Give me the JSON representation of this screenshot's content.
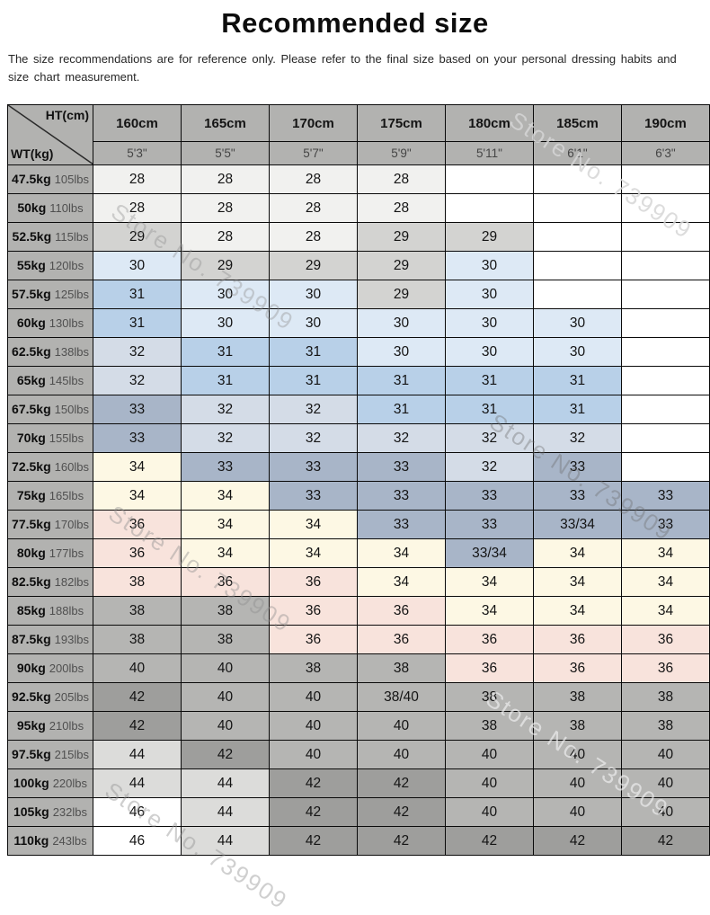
{
  "chart_data": {
    "type": "table",
    "title": "Recommended size",
    "note": "The size recommendations are for reference only. Please refer to the final size based on your personal dressing habits and size chart measurement.",
    "corner": {
      "top": "HT(cm)",
      "bottom": "WT(kg)"
    },
    "columns_cm": [
      "160cm",
      "165cm",
      "170cm",
      "175cm",
      "180cm",
      "185cm",
      "190cm"
    ],
    "columns_ftin": [
      "5'3\"",
      "5'5\"",
      "5'7\"",
      "5'9\"",
      "5'11\"",
      "6'1\"",
      "6'3\""
    ],
    "rows": [
      {
        "kg": "47.5kg",
        "lbs": "105lbs",
        "sizes": [
          "28",
          "28",
          "28",
          "28",
          "",
          "",
          ""
        ],
        "cell_colors": [
          "ow",
          "ow",
          "ow",
          "ow",
          "w",
          "w",
          "w"
        ]
      },
      {
        "kg": "50kg",
        "lbs": "110lbs",
        "sizes": [
          "28",
          "28",
          "28",
          "28",
          "",
          "",
          ""
        ],
        "cell_colors": [
          "ow",
          "ow",
          "ow",
          "ow",
          "w",
          "w",
          "w"
        ]
      },
      {
        "kg": "52.5kg",
        "lbs": "115lbs",
        "sizes": [
          "29",
          "28",
          "28",
          "29",
          "29",
          "",
          ""
        ],
        "cell_colors": [
          "sv",
          "ow",
          "ow",
          "sv",
          "sv",
          "w",
          "w"
        ]
      },
      {
        "kg": "55kg",
        "lbs": "120lbs",
        "sizes": [
          "30",
          "29",
          "29",
          "29",
          "30",
          "",
          ""
        ],
        "cell_colors": [
          "lb",
          "sv",
          "sv",
          "sv",
          "lb",
          "w",
          "w"
        ]
      },
      {
        "kg": "57.5kg",
        "lbs": "125lbs",
        "sizes": [
          "31",
          "30",
          "30",
          "29",
          "30",
          "",
          ""
        ],
        "cell_colors": [
          "mb",
          "lb",
          "lb",
          "sv",
          "lb",
          "w",
          "w"
        ]
      },
      {
        "kg": "60kg",
        "lbs": "130lbs",
        "sizes": [
          "31",
          "30",
          "30",
          "30",
          "30",
          "30",
          ""
        ],
        "cell_colors": [
          "mb",
          "lb",
          "lb",
          "lb",
          "lb",
          "lb",
          "w"
        ]
      },
      {
        "kg": "62.5kg",
        "lbs": "138lbs",
        "sizes": [
          "32",
          "31",
          "31",
          "30",
          "30",
          "30",
          ""
        ],
        "cell_colors": [
          "bg",
          "mb",
          "mb",
          "lb",
          "lb",
          "lb",
          "w"
        ]
      },
      {
        "kg": "65kg",
        "lbs": "145lbs",
        "sizes": [
          "32",
          "31",
          "31",
          "31",
          "31",
          "31",
          ""
        ],
        "cell_colors": [
          "bg",
          "mb",
          "mb",
          "mb",
          "mb",
          "mb",
          "w"
        ]
      },
      {
        "kg": "67.5kg",
        "lbs": "150lbs",
        "sizes": [
          "33",
          "32",
          "32",
          "31",
          "31",
          "31",
          ""
        ],
        "cell_colors": [
          "sl",
          "bg",
          "bg",
          "mb",
          "mb",
          "mb",
          "w"
        ]
      },
      {
        "kg": "70kg",
        "lbs": "155lbs",
        "sizes": [
          "33",
          "32",
          "32",
          "32",
          "32",
          "32",
          ""
        ],
        "cell_colors": [
          "sl",
          "bg",
          "bg",
          "bg",
          "bg",
          "bg",
          "w"
        ]
      },
      {
        "kg": "72.5kg",
        "lbs": "160lbs",
        "sizes": [
          "34",
          "33",
          "33",
          "33",
          "32",
          "33",
          ""
        ],
        "cell_colors": [
          "cr",
          "sl",
          "sl",
          "sl",
          "bg",
          "sl",
          "w"
        ]
      },
      {
        "kg": "75kg",
        "lbs": "165lbs",
        "sizes": [
          "34",
          "34",
          "33",
          "33",
          "33",
          "33",
          "33"
        ],
        "cell_colors": [
          "cr",
          "cr",
          "sl",
          "sl",
          "sl",
          "sl",
          "sl"
        ]
      },
      {
        "kg": "77.5kg",
        "lbs": "170lbs",
        "sizes": [
          "36",
          "34",
          "34",
          "33",
          "33",
          "33/34",
          "33"
        ],
        "cell_colors": [
          "pk",
          "cr",
          "cr",
          "sl",
          "sl",
          "sl",
          "sl"
        ]
      },
      {
        "kg": "80kg",
        "lbs": "177lbs",
        "sizes": [
          "36",
          "34",
          "34",
          "34",
          "33/34",
          "34",
          "34"
        ],
        "cell_colors": [
          "pk",
          "cr",
          "cr",
          "cr",
          "sl",
          "cr",
          "cr"
        ]
      },
      {
        "kg": "82.5kg",
        "lbs": "182lbs",
        "sizes": [
          "38",
          "36",
          "36",
          "34",
          "34",
          "34",
          "34"
        ],
        "cell_colors": [
          "pk",
          "pk",
          "pk",
          "cr",
          "cr",
          "cr",
          "cr"
        ]
      },
      {
        "kg": "85kg",
        "lbs": "188lbs",
        "sizes": [
          "38",
          "38",
          "36",
          "36",
          "34",
          "34",
          "34"
        ],
        "cell_colors": [
          "gr",
          "gr",
          "pk",
          "pk",
          "cr",
          "cr",
          "cr"
        ]
      },
      {
        "kg": "87.5kg",
        "lbs": "193lbs",
        "sizes": [
          "38",
          "38",
          "36",
          "36",
          "36",
          "36",
          "36"
        ],
        "cell_colors": [
          "gr",
          "gr",
          "pk",
          "pk",
          "pk",
          "pk",
          "pk"
        ]
      },
      {
        "kg": "90kg",
        "lbs": "200lbs",
        "sizes": [
          "40",
          "40",
          "38",
          "38",
          "36",
          "36",
          "36"
        ],
        "cell_colors": [
          "gr",
          "gr",
          "gr",
          "gr",
          "pk",
          "pk",
          "pk"
        ]
      },
      {
        "kg": "92.5kg",
        "lbs": "205lbs",
        "sizes": [
          "42",
          "40",
          "40",
          "38/40",
          "38",
          "38",
          "38"
        ],
        "cell_colors": [
          "dg",
          "gr",
          "gr",
          "gr",
          "gr",
          "gr",
          "gr"
        ]
      },
      {
        "kg": "95kg",
        "lbs": "210lbs",
        "sizes": [
          "42",
          "40",
          "40",
          "40",
          "38",
          "38",
          "38"
        ],
        "cell_colors": [
          "dg",
          "gr",
          "gr",
          "gr",
          "gr",
          "gr",
          "gr"
        ]
      },
      {
        "kg": "97.5kg",
        "lbs": "215lbs",
        "sizes": [
          "44",
          "42",
          "40",
          "40",
          "40",
          "40",
          "40"
        ],
        "cell_colors": [
          "lg",
          "dg",
          "gr",
          "gr",
          "gr",
          "gr",
          "gr"
        ]
      },
      {
        "kg": "100kg",
        "lbs": "220lbs",
        "sizes": [
          "44",
          "44",
          "42",
          "42",
          "40",
          "40",
          "40"
        ],
        "cell_colors": [
          "lg",
          "lg",
          "dg",
          "dg",
          "gr",
          "gr",
          "gr"
        ]
      },
      {
        "kg": "105kg",
        "lbs": "232lbs",
        "sizes": [
          "46",
          "44",
          "42",
          "42",
          "40",
          "40",
          "40"
        ],
        "cell_colors": [
          "w",
          "lg",
          "dg",
          "dg",
          "gr",
          "gr",
          "gr"
        ]
      },
      {
        "kg": "110kg",
        "lbs": "243lbs",
        "sizes": [
          "46",
          "44",
          "42",
          "42",
          "42",
          "42",
          "42"
        ],
        "cell_colors": [
          "w",
          "lg",
          "dg",
          "dg",
          "dg",
          "dg",
          "dg"
        ]
      }
    ],
    "palette": {
      "w": "#ffffff",
      "ow": "#f1f1ef",
      "sv": "#d3d3d1",
      "lb": "#dde9f5",
      "mb": "#b8d0e8",
      "bg": "#d4dce7",
      "sl": "#a8b5c8",
      "cr": "#fdf8e4",
      "pk": "#f8e3dc",
      "gr": "#b5b5b3",
      "dg": "#9e9e9c",
      "lg": "#dcdcda",
      "header": "#b2b2b0"
    },
    "watermark": "Store No. 739909"
  }
}
